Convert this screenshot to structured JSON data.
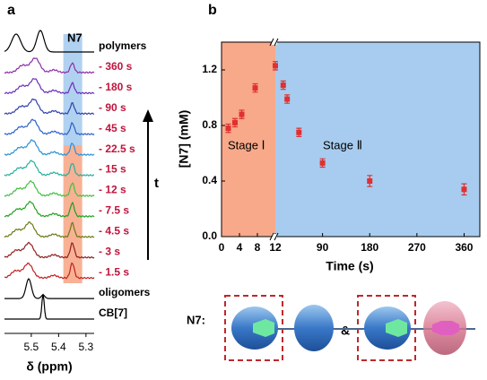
{
  "panel_a": {
    "letter": "a",
    "peak_label": "N7",
    "arrow_label": "t",
    "xlabel": "δ (ppm)",
    "xticks": [
      {
        "value": 5.5,
        "label": "5.5"
      },
      {
        "value": 5.4,
        "label": "5.4"
      },
      {
        "value": 5.3,
        "label": "5.3"
      }
    ],
    "xlim": [
      5.598,
      5.27
    ],
    "spectra": [
      {
        "label": "polymers",
        "color": "#000000",
        "label_color": "#000000"
      },
      {
        "label": "- 360 s",
        "color": "#8b2fa8",
        "label_color": "#c0143c"
      },
      {
        "label": "- 180 s",
        "color": "#6a2fb8",
        "label_color": "#c0143c"
      },
      {
        "label": "- 90 s",
        "color": "#3040b0",
        "label_color": "#c0143c"
      },
      {
        "label": "- 45 s",
        "color": "#2a60c8",
        "label_color": "#c0143c"
      },
      {
        "label": "- 22.5 s",
        "color": "#2a90d8",
        "label_color": "#c0143c"
      },
      {
        "label": "- 15 s",
        "color": "#20b0a0",
        "label_color": "#c0143c"
      },
      {
        "label": "- 12 s",
        "color": "#40c040",
        "label_color": "#c0143c"
      },
      {
        "label": "- 7.5 s",
        "color": "#20a020",
        "label_color": "#c0143c"
      },
      {
        "label": "- 4.5 s",
        "color": "#6a7a10",
        "label_color": "#c0143c"
      },
      {
        "label": "- 3 s",
        "color": "#902020",
        "label_color": "#c0143c"
      },
      {
        "label": "- 1.5 s",
        "color": "#c02020",
        "label_color": "#c0143c"
      },
      {
        "label": "oligomers",
        "color": "#000000",
        "label_color": "#000000"
      },
      {
        "label": "CB[7]",
        "color": "#000000",
        "label_color": "#000000"
      }
    ]
  },
  "chart_data": {
    "type": "scatter",
    "letter": "b",
    "xlabel": "Time (s)",
    "ylabel": "[N7] (mM)",
    "ylim": [
      0,
      1.4
    ],
    "yticks": [
      {
        "value": 0,
        "label": "0.0"
      },
      {
        "value": 0.4,
        "label": "0.4"
      },
      {
        "value": 0.8,
        "label": "0.8"
      },
      {
        "value": 1.2,
        "label": "1.2"
      }
    ],
    "x_segments": [
      {
        "xlim": [
          0,
          12
        ],
        "xticks": [
          0,
          4,
          8,
          12
        ],
        "region": "Stage Ⅰ",
        "color": "#f7a98a"
      },
      {
        "xlim": [
          0,
          390
        ],
        "xticks": [
          90,
          180,
          270,
          360
        ],
        "region": "Stage Ⅱ",
        "color": "#a8ccef"
      }
    ],
    "series": [
      {
        "color": "#e03030",
        "x": [
          1.5,
          3,
          4.5,
          7.5,
          12,
          15,
          22.5,
          45,
          90,
          180,
          360
        ],
        "values": [
          0.78,
          0.82,
          0.88,
          1.07,
          1.23,
          1.09,
          0.99,
          0.75,
          0.53,
          0.4,
          0.34
        ],
        "errors": [
          0.03,
          0.03,
          0.03,
          0.03,
          0.03,
          0.03,
          0.03,
          0.03,
          0.03,
          0.04,
          0.04
        ]
      }
    ]
  },
  "scheme": {
    "label": "N7:",
    "joiner": "&"
  }
}
